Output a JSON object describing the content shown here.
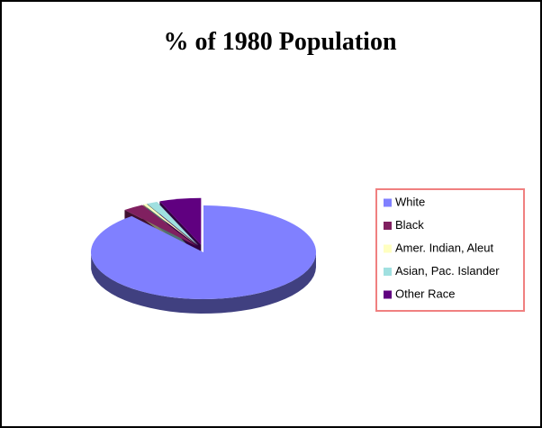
{
  "chart_data": {
    "type": "pie",
    "title": "% of 1980 Population",
    "categories": [
      "White",
      "Black",
      "Amer. Indian, Aleut",
      "Asian, Pac. Islander",
      "Other Race"
    ],
    "values": [
      89,
      3,
      0.5,
      1.5,
      6
    ],
    "colors": [
      "#8080ff",
      "#802060",
      "#ffffc0",
      "#a0e0e0",
      "#600080"
    ],
    "legend": "right"
  }
}
